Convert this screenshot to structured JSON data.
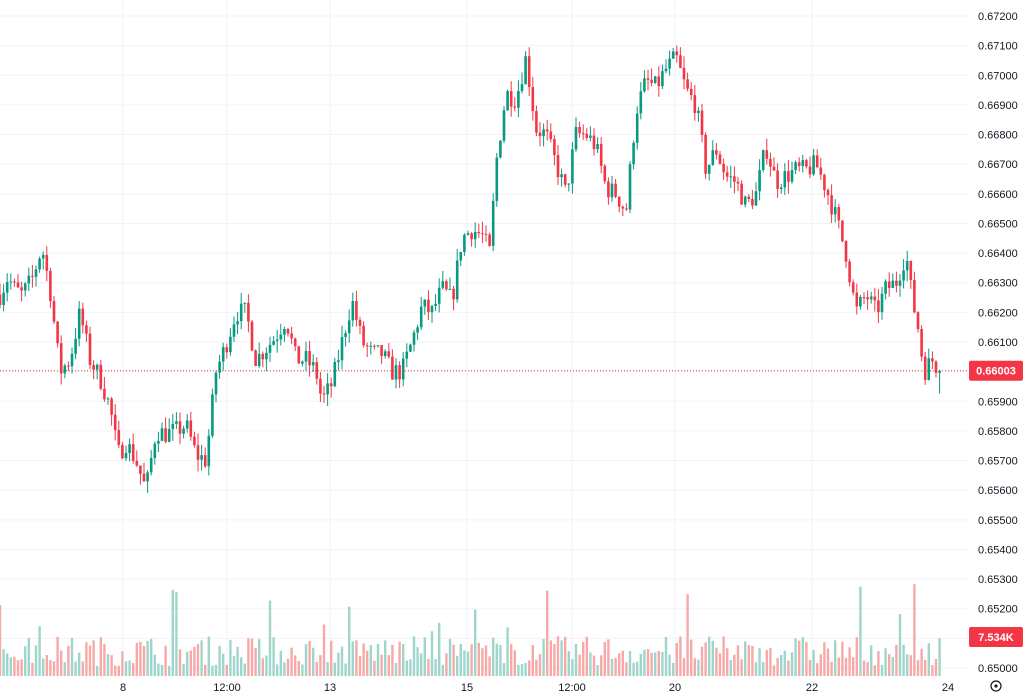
{
  "chart_data": {
    "type": "candlestick",
    "y_axis": {
      "ticks": [
        "0.67200",
        "0.67100",
        "0.67000",
        "0.66900",
        "0.66800",
        "0.66700",
        "0.66600",
        "0.66500",
        "0.66400",
        "0.66300",
        "0.66200",
        "0.66100",
        "0.66000",
        "0.65900",
        "0.65800",
        "0.65700",
        "0.65600",
        "0.65500",
        "0.65400",
        "0.65300",
        "0.65200",
        "0.65100",
        "0.65000"
      ],
      "range": [
        0.65,
        0.672
      ]
    },
    "x_axis": {
      "labels": [
        "8",
        "12:00",
        "13",
        "15",
        "12:00",
        "20",
        "22",
        "24"
      ]
    },
    "last_price": {
      "value": 0.66003,
      "label": "0.66003",
      "color": "#f23645"
    },
    "volume_badge": {
      "label": "7.534K",
      "color": "#f23645"
    },
    "colors": {
      "up": "#089981",
      "down": "#f23645",
      "vol_up": "#9fd6cc",
      "vol_down": "#f7a9a7",
      "grid": "#f0f3fa"
    },
    "anchor_closes": [
      [
        0,
        0.6626
      ],
      [
        8,
        0.6632
      ],
      [
        14,
        0.6628
      ],
      [
        22,
        0.6626
      ],
      [
        32,
        0.6631
      ],
      [
        42,
        0.6642
      ],
      [
        50,
        0.6628
      ],
      [
        60,
        0.66
      ],
      [
        70,
        0.6604
      ],
      [
        80,
        0.662
      ],
      [
        90,
        0.6604
      ],
      [
        100,
        0.6598
      ],
      [
        110,
        0.6588
      ],
      [
        118,
        0.6572
      ],
      [
        126,
        0.6576
      ],
      [
        136,
        0.657
      ],
      [
        146,
        0.656
      ],
      [
        156,
        0.658
      ],
      [
        166,
        0.6579
      ],
      [
        176,
        0.658
      ],
      [
        186,
        0.6582
      ],
      [
        196,
        0.6572
      ],
      [
        206,
        0.657
      ],
      [
        216,
        0.66
      ],
      [
        226,
        0.6609
      ],
      [
        236,
        0.662
      ],
      [
        246,
        0.662
      ],
      [
        256,
        0.6604
      ],
      [
        266,
        0.6608
      ],
      [
        276,
        0.6612
      ],
      [
        286,
        0.6618
      ],
      [
        296,
        0.6604
      ],
      [
        306,
        0.6604
      ],
      [
        316,
        0.66
      ],
      [
        322,
        0.659
      ],
      [
        332,
        0.6596
      ],
      [
        342,
        0.661
      ],
      [
        352,
        0.6624
      ],
      [
        362,
        0.661
      ],
      [
        372,
        0.6606
      ],
      [
        382,
        0.6606
      ],
      [
        392,
        0.66
      ],
      [
        402,
        0.66
      ],
      [
        412,
        0.661
      ],
      [
        422,
        0.6622
      ],
      [
        432,
        0.662
      ],
      [
        442,
        0.6628
      ],
      [
        452,
        0.6624
      ],
      [
        462,
        0.6645
      ],
      [
        472,
        0.6648
      ],
      [
        482,
        0.6646
      ],
      [
        490,
        0.664
      ],
      [
        496,
        0.667
      ],
      [
        506,
        0.6694
      ],
      [
        516,
        0.6692
      ],
      [
        526,
        0.6706
      ],
      [
        536,
        0.6682
      ],
      [
        546,
        0.668
      ],
      [
        556,
        0.667
      ],
      [
        566,
        0.666
      ],
      [
        576,
        0.668
      ],
      [
        586,
        0.668
      ],
      [
        596,
        0.6676
      ],
      [
        606,
        0.6662
      ],
      [
        616,
        0.666
      ],
      [
        626,
        0.6654
      ],
      [
        636,
        0.6688
      ],
      [
        646,
        0.6698
      ],
      [
        656,
        0.6696
      ],
      [
        666,
        0.6702
      ],
      [
        676,
        0.6706
      ],
      [
        686,
        0.6695
      ],
      [
        696,
        0.669
      ],
      [
        706,
        0.6668
      ],
      [
        716,
        0.6675
      ],
      [
        726,
        0.6666
      ],
      [
        736,
        0.6664
      ],
      [
        746,
        0.6656
      ],
      [
        756,
        0.666
      ],
      [
        766,
        0.6676
      ],
      [
        776,
        0.6664
      ],
      [
        786,
        0.6666
      ],
      [
        796,
        0.6668
      ],
      [
        806,
        0.6668
      ],
      [
        816,
        0.667
      ],
      [
        826,
        0.6662
      ],
      [
        836,
        0.6652
      ],
      [
        846,
        0.664
      ],
      [
        856,
        0.662
      ],
      [
        866,
        0.6626
      ],
      [
        876,
        0.662
      ],
      [
        886,
        0.6628
      ],
      [
        896,
        0.663
      ],
      [
        906,
        0.664
      ],
      [
        912,
        0.6625
      ],
      [
        918,
        0.6615
      ],
      [
        924,
        0.66
      ],
      [
        932,
        0.6604
      ],
      [
        940,
        0.66003
      ]
    ]
  }
}
